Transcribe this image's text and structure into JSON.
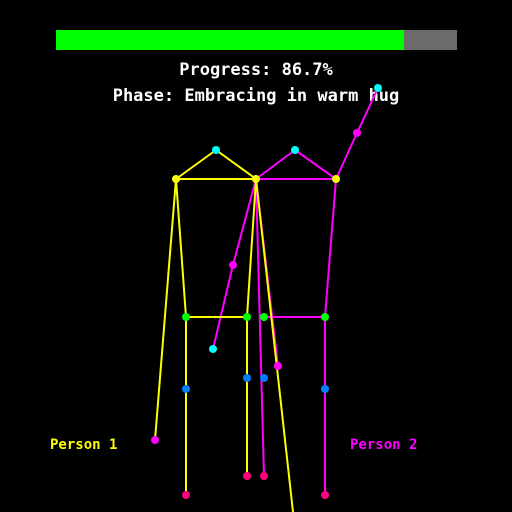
{
  "progress": {
    "label": "Progress: 86.7%",
    "value_percent": 86.7,
    "fill_color": "#00ff00",
    "track_color": "#6c6c6c"
  },
  "phase": {
    "label": "Phase: Embracing in warm hug"
  },
  "persons": [
    {
      "label": "Person 1",
      "color": "#ffff00"
    },
    {
      "label": "Person 2",
      "color": "#ff00ff"
    }
  ],
  "joint_colors": {
    "head": "#00ffff",
    "shoulder": "#ffff00",
    "hip": "#00ff00",
    "knee": "#0080ff",
    "hand_or_foot": "#ff0080"
  }
}
